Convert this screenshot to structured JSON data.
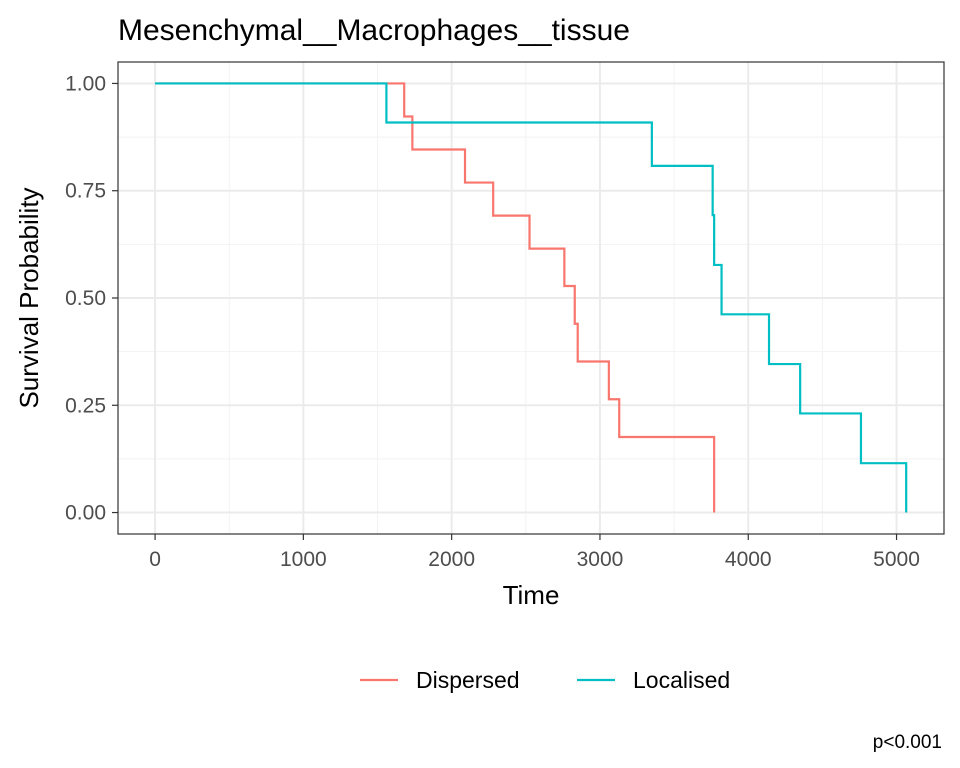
{
  "chart_data": {
    "type": "line",
    "title": "Mesenchymal__Macrophages__tissue",
    "xlabel": "Time",
    "ylabel": "Survival Probability",
    "xlim": [
      -250,
      5320
    ],
    "ylim": [
      -0.05,
      1.05
    ],
    "x_ticks": [
      0,
      1000,
      2000,
      3000,
      4000,
      5000
    ],
    "x_tick_labels": [
      "0",
      "1000",
      "2000",
      "3000",
      "4000",
      "5000"
    ],
    "y_ticks": [
      0,
      0.25,
      0.5,
      0.75,
      1.0
    ],
    "y_tick_labels": [
      "0.00",
      "0.25",
      "0.50",
      "0.75",
      "1.00"
    ],
    "grid": true,
    "legend_position": "bottom",
    "series": [
      {
        "name": "Dispersed",
        "color": "#F8766D",
        "step_points": [
          [
            0,
            1.0
          ],
          [
            1680,
            0.923
          ],
          [
            1735,
            0.846
          ],
          [
            2090,
            0.769
          ],
          [
            2280,
            0.692
          ],
          [
            2525,
            0.615
          ],
          [
            2760,
            0.528
          ],
          [
            2830,
            0.44
          ],
          [
            2850,
            0.352
          ],
          [
            3060,
            0.264
          ],
          [
            3130,
            0.176
          ],
          [
            3770,
            0.0
          ]
        ]
      },
      {
        "name": "Localised",
        "color": "#00BFC4",
        "step_points": [
          [
            0,
            1.0
          ],
          [
            1560,
            0.909
          ],
          [
            3350,
            0.808
          ],
          [
            3760,
            0.693
          ],
          [
            3770,
            0.577
          ],
          [
            3820,
            0.462
          ],
          [
            4140,
            0.346
          ],
          [
            4350,
            0.231
          ],
          [
            4760,
            0.115
          ],
          [
            5065,
            0.0
          ]
        ]
      }
    ],
    "annotation": "p<0.001"
  }
}
